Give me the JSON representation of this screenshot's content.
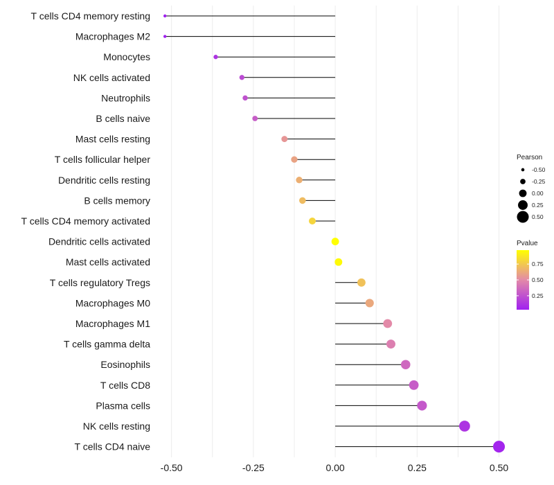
{
  "chart_data": {
    "type": "lollipop",
    "title": "",
    "xlabel": "",
    "ylabel": "",
    "xlim": [
      -0.55,
      0.52
    ],
    "x_ticks": [
      -0.5,
      -0.25,
      0,
      0.25,
      0.5
    ],
    "x_tick_labels": [
      "-0.50",
      "-0.25",
      "0.00",
      "0.25",
      "0.50"
    ],
    "grid": true,
    "categories": [
      "T cells CD4 memory resting",
      "Macrophages M2",
      "Monocytes",
      "NK cells activated",
      "Neutrophils",
      "B cells naive",
      "Mast cells resting",
      "T cells follicular helper",
      "Dendritic cells resting",
      "B cells memory",
      "T cells CD4 memory activated",
      "Dendritic cells activated",
      "Mast cells activated",
      "T cells regulatory  Tregs ",
      "Macrophages M0",
      "Macrophages M1",
      "T cells gamma delta",
      "Eosinophils",
      "T cells CD8",
      "Plasma cells",
      "NK cells resting",
      "T cells CD4 naive"
    ],
    "pearson": [
      -0.52,
      -0.52,
      -0.365,
      -0.285,
      -0.275,
      -0.245,
      -0.155,
      -0.125,
      -0.11,
      -0.1,
      -0.07,
      0.0,
      0.01,
      0.08,
      0.105,
      0.16,
      0.17,
      0.215,
      0.24,
      0.265,
      0.395,
      0.5
    ],
    "pvalue": [
      0.03,
      0.03,
      0.12,
      0.22,
      0.25,
      0.3,
      0.55,
      0.6,
      0.65,
      0.7,
      0.8,
      0.97,
      0.95,
      0.72,
      0.62,
      0.5,
      0.45,
      0.35,
      0.3,
      0.28,
      0.12,
      0.05
    ],
    "legend": {
      "size_title": "Pearson",
      "size_values": [
        -0.5,
        -0.25,
        0,
        0.25,
        0.5
      ],
      "size_labels": [
        "-0.50",
        "-0.25",
        "0.00",
        "0.25",
        "0.50"
      ],
      "color_title": "Pvalue",
      "color_breaks": [
        0.25,
        0.5,
        0.75
      ],
      "color_labels": [
        "0.25",
        "0.50",
        "0.75"
      ],
      "color_range": [
        0.03,
        0.97
      ]
    },
    "colors": {
      "low": "#a020f0",
      "mid": "#e38aa8",
      "high": "#ffff00",
      "stem": "#000000",
      "grid": "#ececec"
    }
  }
}
